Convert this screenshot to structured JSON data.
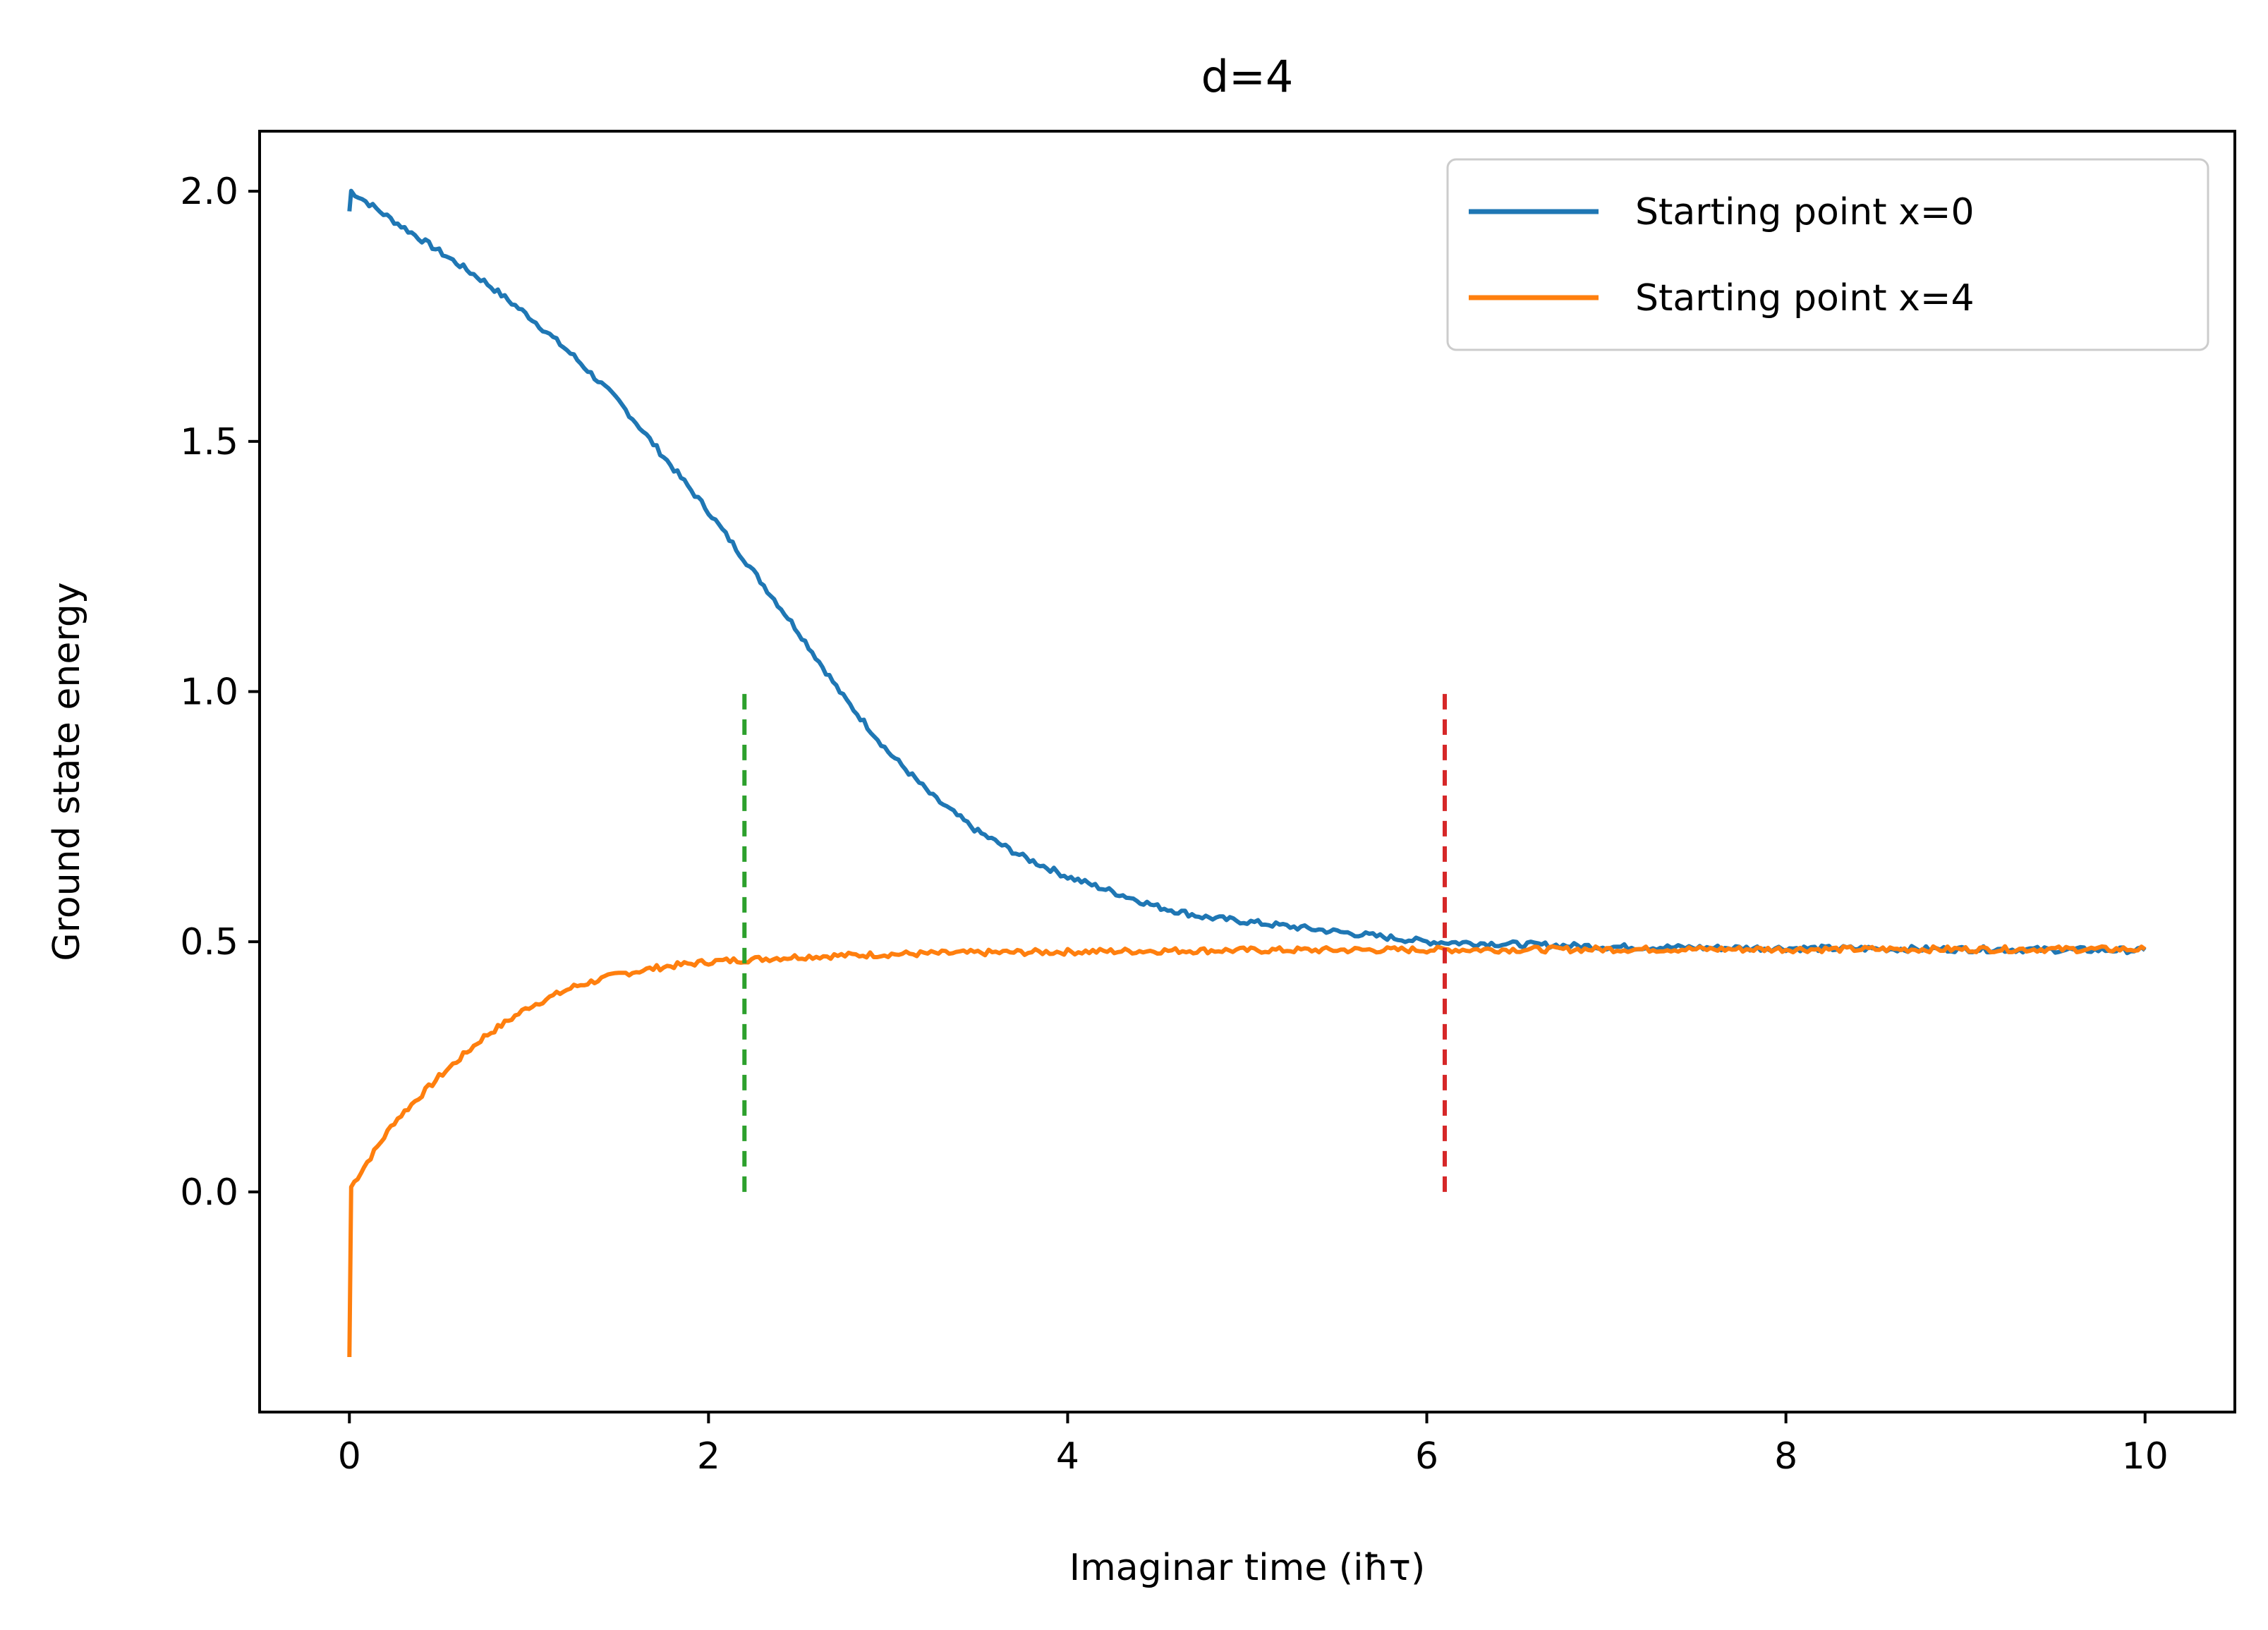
{
  "chart_data": {
    "type": "line",
    "title": "d=4",
    "xlabel": "Imaginar time (iħτ)",
    "ylabel": "Ground state energy",
    "xlim": [
      -0.5,
      10.5
    ],
    "ylim": [
      -0.44,
      2.12
    ],
    "x_ticks": [
      0,
      2,
      4,
      6,
      8,
      10
    ],
    "x_tick_labels": [
      "0",
      "2",
      "4",
      "6",
      "8",
      "10"
    ],
    "y_ticks": [
      0.0,
      0.5,
      1.0,
      1.5,
      2.0
    ],
    "y_tick_labels": [
      "0.0",
      "0.5",
      "1.0",
      "1.5",
      "2.0"
    ],
    "grid": false,
    "legend_position": "top-right",
    "series": [
      {
        "name": "Starting point x=0",
        "color": "#1f77b4",
        "style": "solid",
        "x": [
          0,
          0.01,
          0.25,
          0.5,
          0.75,
          1.0,
          1.25,
          1.5,
          1.75,
          2.0,
          2.25,
          2.5,
          2.75,
          3.0,
          3.25,
          3.5,
          3.75,
          4.0,
          4.25,
          4.5,
          4.75,
          5.0,
          5.5,
          6.0,
          6.5,
          7.0,
          7.5,
          8.0,
          8.5,
          9.0,
          9.5,
          10.0
        ],
        "y": [
          1.96,
          2.0,
          1.94,
          1.88,
          1.82,
          1.75,
          1.67,
          1.58,
          1.47,
          1.36,
          1.24,
          1.12,
          0.99,
          0.88,
          0.79,
          0.72,
          0.67,
          0.63,
          0.6,
          0.57,
          0.55,
          0.54,
          0.52,
          0.5,
          0.495,
          0.49,
          0.488,
          0.487,
          0.486,
          0.485,
          0.484,
          0.483
        ]
      },
      {
        "name": "Starting point x=4",
        "color": "#ff7f0e",
        "style": "solid",
        "x": [
          0,
          0.01,
          0.1,
          0.25,
          0.5,
          0.75,
          1.0,
          1.25,
          1.5,
          1.75,
          2.0,
          2.5,
          3.0,
          3.5,
          4.0,
          4.5,
          5.0,
          6.0,
          7.0,
          8.0,
          9.0,
          10.0
        ],
        "y": [
          -0.33,
          0.01,
          0.06,
          0.14,
          0.23,
          0.31,
          0.37,
          0.41,
          0.435,
          0.45,
          0.46,
          0.47,
          0.475,
          0.478,
          0.48,
          0.482,
          0.483,
          0.484,
          0.485,
          0.485,
          0.485,
          0.485
        ]
      },
      {
        "color": "#2ca02c",
        "style": "dashed",
        "x": [
          2.2,
          2.2
        ],
        "y": [
          0.0,
          1.0
        ]
      },
      {
        "color": "#d62728",
        "style": "dashed",
        "x": [
          6.1,
          6.1
        ],
        "y": [
          0.0,
          1.0
        ]
      }
    ]
  }
}
